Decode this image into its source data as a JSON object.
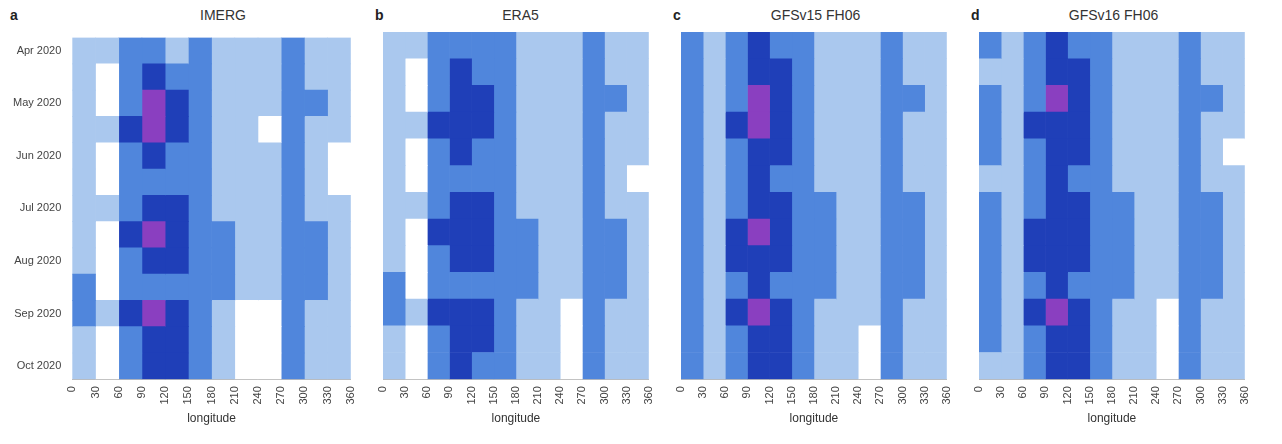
{
  "chart_data": [
    {
      "type": "heatmap",
      "title": "IMERG",
      "panel_label": "a",
      "x_label": "longitude",
      "xlim": [
        0,
        360
      ],
      "xticks": [
        0,
        30,
        60,
        90,
        120,
        150,
        180,
        210,
        240,
        270,
        300,
        330,
        360
      ],
      "x_edges": [
        0,
        30,
        60,
        90,
        120,
        150,
        180,
        210,
        240,
        270,
        300,
        330,
        360
      ],
      "categories": [
        "Apr 2020",
        null,
        "May 2020",
        null,
        "Jun 2020",
        null,
        "Jul 2020",
        null,
        "Aug 2020",
        null,
        "Sep 2020",
        null,
        "Oct 2020"
      ],
      "zlim": [
        0,
        4
      ],
      "grid": false,
      "tick_labels": true,
      "cells": [
        [
          1,
          1,
          2,
          2,
          1,
          2,
          1,
          1,
          1,
          2,
          1,
          1
        ],
        [
          1,
          0,
          2,
          3,
          2,
          2,
          1,
          1,
          1,
          2,
          1,
          1
        ],
        [
          1,
          0,
          2,
          4,
          3,
          2,
          1,
          1,
          1,
          2,
          2,
          1
        ],
        [
          1,
          1,
          3,
          4,
          3,
          2,
          1,
          1,
          0,
          2,
          1,
          1
        ],
        [
          1,
          0,
          2,
          3,
          2,
          2,
          1,
          1,
          1,
          2,
          1,
          0
        ],
        [
          1,
          0,
          2,
          2,
          2,
          2,
          1,
          1,
          1,
          2,
          1,
          0
        ],
        [
          1,
          1,
          2,
          3,
          3,
          2,
          1,
          1,
          1,
          2,
          1,
          1
        ],
        [
          1,
          0,
          3,
          4,
          3,
          2,
          2,
          1,
          1,
          2,
          2,
          1
        ],
        [
          1,
          0,
          2,
          3,
          3,
          2,
          2,
          1,
          1,
          2,
          2,
          1
        ],
        [
          2,
          0,
          2,
          2,
          2,
          2,
          2,
          1,
          1,
          2,
          2,
          1
        ],
        [
          2,
          1,
          3,
          4,
          3,
          2,
          1,
          0,
          0,
          2,
          1,
          1
        ],
        [
          1,
          0,
          2,
          3,
          3,
          2,
          1,
          0,
          0,
          2,
          1,
          1
        ],
        [
          1,
          0,
          2,
          3,
          3,
          2,
          1,
          0,
          0,
          2,
          1,
          1
        ]
      ]
    },
    {
      "type": "heatmap",
      "title": "ERA5",
      "panel_label": "b",
      "x_label": "longitude",
      "xlim": [
        0,
        360
      ],
      "xticks": [
        0,
        30,
        60,
        90,
        120,
        150,
        180,
        210,
        240,
        270,
        300,
        330,
        360
      ],
      "x_edges": [
        0,
        30,
        60,
        90,
        120,
        150,
        180,
        210,
        240,
        270,
        300,
        330,
        360
      ],
      "categories": [
        "Apr 2020",
        null,
        "May 2020",
        null,
        "Jun 2020",
        null,
        "Jul 2020",
        null,
        "Aug 2020",
        null,
        "Sep 2020",
        null,
        "Oct 2020"
      ],
      "zlim": [
        0,
        4
      ],
      "grid": false,
      "tick_labels": "x",
      "cells": [
        [
          1,
          1,
          2,
          2,
          2,
          2,
          1,
          1,
          1,
          2,
          1,
          1
        ],
        [
          1,
          0,
          2,
          3,
          2,
          2,
          1,
          1,
          1,
          2,
          1,
          1
        ],
        [
          1,
          0,
          2,
          3,
          3,
          2,
          1,
          1,
          1,
          2,
          2,
          1
        ],
        [
          1,
          1,
          3,
          3,
          3,
          2,
          1,
          1,
          1,
          2,
          1,
          1
        ],
        [
          1,
          0,
          2,
          3,
          2,
          2,
          1,
          1,
          1,
          2,
          1,
          1
        ],
        [
          1,
          0,
          2,
          2,
          2,
          2,
          1,
          1,
          1,
          2,
          1,
          0
        ],
        [
          1,
          1,
          2,
          3,
          3,
          2,
          1,
          1,
          1,
          2,
          1,
          1
        ],
        [
          1,
          0,
          3,
          3,
          3,
          2,
          2,
          1,
          1,
          2,
          2,
          1
        ],
        [
          1,
          0,
          2,
          3,
          3,
          2,
          2,
          1,
          1,
          2,
          2,
          1
        ],
        [
          2,
          0,
          2,
          2,
          2,
          2,
          2,
          1,
          1,
          2,
          2,
          1
        ],
        [
          2,
          1,
          3,
          3,
          3,
          2,
          1,
          1,
          0,
          2,
          1,
          1
        ],
        [
          1,
          0,
          2,
          3,
          3,
          2,
          1,
          1,
          0,
          2,
          1,
          1
        ],
        [
          1,
          0,
          2,
          3,
          2,
          2,
          1,
          1,
          0,
          2,
          1,
          1
        ]
      ]
    },
    {
      "type": "heatmap",
      "title": "GFSv15 FH06",
      "panel_label": "c",
      "x_label": "longitude",
      "xlim": [
        0,
        360
      ],
      "xticks": [
        0,
        30,
        60,
        90,
        120,
        150,
        180,
        210,
        240,
        270,
        300,
        330,
        360
      ],
      "x_edges": [
        0,
        30,
        60,
        90,
        120,
        150,
        180,
        210,
        240,
        270,
        300,
        330,
        360
      ],
      "categories": [
        "Apr 2020",
        null,
        "May 2020",
        null,
        "Jun 2020",
        null,
        "Jul 2020",
        null,
        "Aug 2020",
        null,
        "Sep 2020",
        null,
        "Oct 2020"
      ],
      "zlim": [
        0,
        4
      ],
      "grid": false,
      "tick_labels": "x",
      "cells": [
        [
          2,
          1,
          2,
          3,
          2,
          2,
          1,
          1,
          1,
          2,
          1,
          1
        ],
        [
          2,
          1,
          2,
          3,
          3,
          2,
          1,
          1,
          1,
          2,
          1,
          1
        ],
        [
          2,
          1,
          2,
          4,
          3,
          2,
          1,
          1,
          1,
          2,
          2,
          1
        ],
        [
          2,
          1,
          3,
          4,
          3,
          2,
          1,
          1,
          1,
          2,
          1,
          1
        ],
        [
          2,
          1,
          2,
          3,
          3,
          2,
          1,
          1,
          1,
          2,
          1,
          1
        ],
        [
          2,
          1,
          2,
          3,
          2,
          2,
          1,
          1,
          1,
          2,
          1,
          1
        ],
        [
          2,
          1,
          2,
          3,
          3,
          2,
          2,
          1,
          1,
          2,
          2,
          1
        ],
        [
          2,
          1,
          3,
          4,
          3,
          2,
          2,
          1,
          1,
          2,
          2,
          1
        ],
        [
          2,
          1,
          3,
          3,
          3,
          2,
          2,
          1,
          1,
          2,
          2,
          1
        ],
        [
          2,
          1,
          2,
          3,
          2,
          2,
          2,
          1,
          1,
          2,
          2,
          1
        ],
        [
          2,
          1,
          3,
          4,
          3,
          2,
          1,
          1,
          1,
          2,
          1,
          1
        ],
        [
          2,
          1,
          2,
          3,
          3,
          2,
          1,
          1,
          0,
          2,
          1,
          1
        ],
        [
          2,
          1,
          2,
          3,
          3,
          2,
          1,
          1,
          0,
          2,
          1,
          1
        ]
      ]
    },
    {
      "type": "heatmap",
      "title": "GFSv16 FH06",
      "panel_label": "d",
      "x_label": "longitude",
      "xlim": [
        0,
        360
      ],
      "xticks": [
        0,
        30,
        60,
        90,
        120,
        150,
        180,
        210,
        240,
        270,
        300,
        330,
        360
      ],
      "x_edges": [
        0,
        30,
        60,
        90,
        120,
        150,
        180,
        210,
        240,
        270,
        300,
        330,
        360
      ],
      "categories": [
        "Apr 2020",
        null,
        "May 2020",
        null,
        "Jun 2020",
        null,
        "Jul 2020",
        null,
        "Aug 2020",
        null,
        "Sep 2020",
        null,
        "Oct 2020"
      ],
      "zlim": [
        0,
        4
      ],
      "grid": false,
      "tick_labels": "x",
      "cells": [
        [
          2,
          1,
          2,
          3,
          2,
          2,
          1,
          1,
          1,
          2,
          1,
          1
        ],
        [
          1,
          1,
          2,
          3,
          3,
          2,
          1,
          1,
          1,
          2,
          1,
          1
        ],
        [
          2,
          1,
          2,
          4,
          3,
          2,
          1,
          1,
          1,
          2,
          2,
          1
        ],
        [
          2,
          1,
          3,
          3,
          3,
          2,
          1,
          1,
          1,
          2,
          1,
          1
        ],
        [
          2,
          1,
          2,
          3,
          3,
          2,
          1,
          1,
          1,
          2,
          1,
          0
        ],
        [
          1,
          1,
          2,
          3,
          2,
          2,
          1,
          1,
          1,
          2,
          1,
          1
        ],
        [
          2,
          1,
          2,
          3,
          3,
          2,
          2,
          1,
          1,
          2,
          2,
          1
        ],
        [
          2,
          1,
          3,
          3,
          3,
          2,
          2,
          1,
          1,
          2,
          2,
          1
        ],
        [
          2,
          1,
          3,
          3,
          3,
          2,
          2,
          1,
          1,
          2,
          2,
          1
        ],
        [
          2,
          1,
          2,
          3,
          2,
          2,
          2,
          1,
          1,
          2,
          2,
          1
        ],
        [
          2,
          1,
          3,
          4,
          3,
          2,
          1,
          1,
          0,
          2,
          1,
          1
        ],
        [
          2,
          1,
          2,
          3,
          3,
          2,
          1,
          1,
          0,
          2,
          1,
          1
        ],
        [
          1,
          1,
          2,
          3,
          3,
          2,
          1,
          1,
          0,
          2,
          1,
          1
        ]
      ]
    }
  ]
}
